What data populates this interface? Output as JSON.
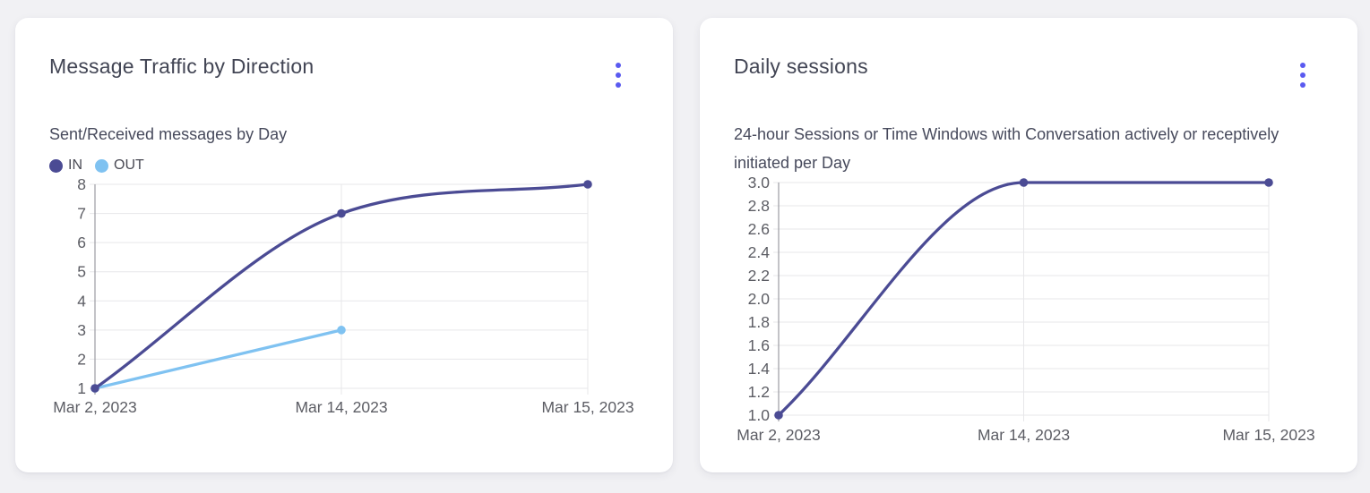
{
  "colors": {
    "page_bg": "#F1F1F4",
    "card_bg": "#FFFFFF",
    "menu_accent": "#5A5AF0",
    "series_in": "#4B4B94",
    "series_out": "#7FC2F1",
    "grid_line": "#E7E7EA",
    "axis_line": "#9B9BA2",
    "tick_text": "#5C5D64"
  },
  "cards": [
    {
      "title": "Message Traffic by Direction",
      "subtitle": "Sent/Received messages by Day",
      "menu_icon": "kebab-menu-icon"
    },
    {
      "title": "Daily sessions",
      "subtitle": "24-hour Sessions or Time Windows with Conversation actively or receptively initiated per Day",
      "menu_icon": "kebab-menu-icon"
    }
  ],
  "chart_data": [
    {
      "type": "line",
      "title": "Message Traffic by Direction",
      "subtitle": "Sent/Received messages by Day",
      "categories": [
        "Mar 2, 2023",
        "Mar 14, 2023",
        "Mar 15, 2023"
      ],
      "series": [
        {
          "name": "IN",
          "color": "#4B4B94",
          "values": [
            1,
            7,
            8
          ]
        },
        {
          "name": "OUT",
          "color": "#7FC2F1",
          "values": [
            1,
            3,
            null
          ]
        }
      ],
      "ylim": [
        1,
        8
      ],
      "y_ticks": [
        "8",
        "7",
        "6",
        "5",
        "4",
        "3",
        "2",
        "1"
      ],
      "xlabel": "",
      "ylabel": "",
      "grid": true,
      "smooth": true,
      "legend_position": "top-left"
    },
    {
      "type": "line",
      "title": "Daily sessions",
      "subtitle": "24-hour Sessions or Time Windows with Conversation actively or receptively initiated per Day",
      "categories": [
        "Mar 2, 2023",
        "Mar 14, 2023",
        "Mar 15, 2023"
      ],
      "series": [
        {
          "name": "Daily sessions",
          "color": "#4B4B94",
          "values": [
            1.0,
            3.0,
            3.0
          ]
        }
      ],
      "ylim": [
        1.0,
        3.0
      ],
      "y_ticks": [
        "3.0",
        "2.8",
        "2.6",
        "2.4",
        "2.2",
        "2.0",
        "1.8",
        "1.6",
        "1.4",
        "1.2",
        "1.0"
      ],
      "xlabel": "",
      "ylabel": "",
      "grid": true,
      "smooth": true,
      "legend_position": "none"
    }
  ]
}
